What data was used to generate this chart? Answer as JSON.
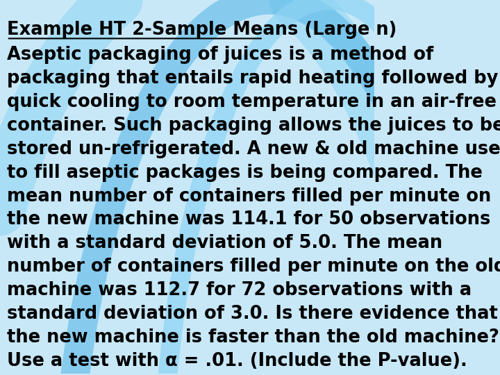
{
  "background_color": "#c8e8f8",
  "title_line": "Example HT 2-Sample Means (Large n)",
  "body_lines": [
    "Aseptic packaging of juices is a method of",
    "packaging that entails rapid heating followed by",
    "quick cooling to room temperature in an air-free",
    "container. Such packaging allows the juices to be",
    "stored un-refrigerated. A new & old machine used",
    "to fill aseptic packages is being compared. The",
    "mean number of containers filled per minute on",
    "the new machine was 114.1 for 50 observations",
    "with a standard deviation of 5.0. The mean",
    "number of containers filled per minute on the old",
    "machine was 112.7 for 72 observations with a",
    "standard deviation of 3.0. Is there evidence that",
    "the new machine is faster than the old machine?",
    "Use a test with α = .01. (Include the P-value)."
  ],
  "text_color": "#000000",
  "title_fontsize": 18.5,
  "body_fontsize": 18.5,
  "font_family": "DejaVu Sans",
  "fig_width": 7.2,
  "fig_height": 5.4,
  "dpi": 100,
  "curve_color1": "#5bb8e8",
  "curve_color2": "#8dd4f4"
}
